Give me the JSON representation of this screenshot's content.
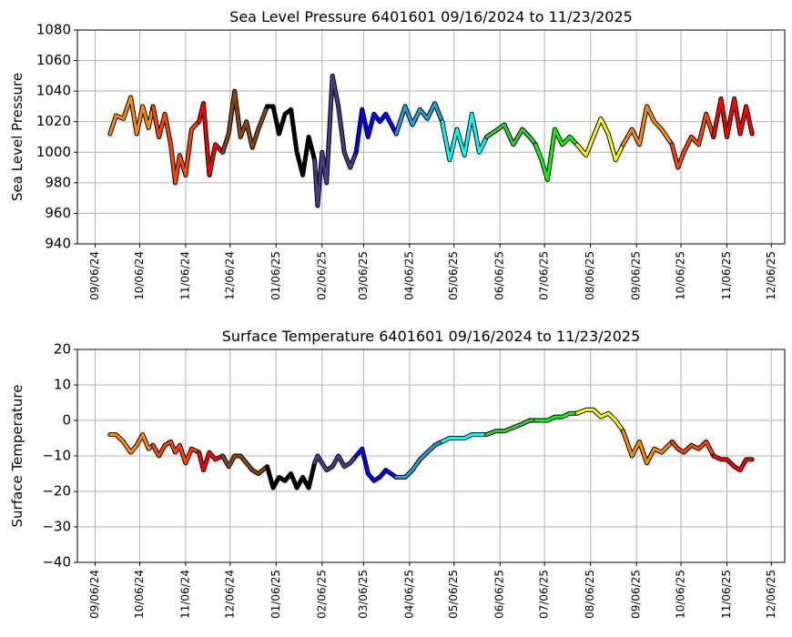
{
  "chart_data": [
    {
      "type": "line",
      "title": "Sea Level Pressure 6401601  09/16/2024 to 11/23/2025",
      "ylabel": "Sea Level Pressure",
      "grid": true,
      "xlim": [
        "2024-08-25",
        "2025-12-15"
      ],
      "ylim": [
        940,
        1080
      ],
      "yticks": [
        940,
        960,
        980,
        1000,
        1020,
        1040,
        1060,
        1080
      ],
      "xticks": [
        {
          "value": "2024-09-06",
          "label": "09/06/24"
        },
        {
          "value": "2024-10-06",
          "label": "10/06/24"
        },
        {
          "value": "2024-11-06",
          "label": "11/06/24"
        },
        {
          "value": "2024-12-06",
          "label": "12/06/24"
        },
        {
          "value": "2025-01-06",
          "label": "01/06/25"
        },
        {
          "value": "2025-02-06",
          "label": "02/06/25"
        },
        {
          "value": "2025-03-06",
          "label": "03/06/25"
        },
        {
          "value": "2025-04-06",
          "label": "04/06/25"
        },
        {
          "value": "2025-05-06",
          "label": "05/06/25"
        },
        {
          "value": "2025-06-06",
          "label": "06/06/25"
        },
        {
          "value": "2025-07-06",
          "label": "07/06/25"
        },
        {
          "value": "2025-08-06",
          "label": "08/06/25"
        },
        {
          "value": "2025-09-06",
          "label": "09/06/25"
        },
        {
          "value": "2025-10-06",
          "label": "10/06/25"
        },
        {
          "value": "2025-11-06",
          "label": "11/06/25"
        },
        {
          "value": "2025-12-06",
          "label": "12/06/25"
        }
      ],
      "series": [
        {
          "color": "#ff8c00",
          "x": [
            "2024-09-16",
            "2024-09-20",
            "2024-09-25",
            "2024-09-30",
            "2024-10-04",
            "2024-10-08",
            "2024-10-12",
            "2024-10-15"
          ],
          "values": [
            1012,
            1024,
            1022,
            1036,
            1012,
            1030,
            1016,
            1030
          ]
        },
        {
          "color": "#ff4500",
          "x": [
            "2024-10-15",
            "2024-10-19",
            "2024-10-23",
            "2024-10-27",
            "2024-10-30",
            "2024-11-02",
            "2024-11-06",
            "2024-11-10",
            "2024-11-15"
          ],
          "values": [
            1030,
            1010,
            1025,
            1005,
            980,
            998,
            985,
            1015,
            1020
          ]
        },
        {
          "color": "#ff0000",
          "x": [
            "2024-11-15",
            "2024-11-18",
            "2024-11-22",
            "2024-11-26",
            "2024-12-01"
          ],
          "values": [
            1020,
            1032,
            985,
            1005,
            1000
          ]
        },
        {
          "color": "#8b4513",
          "x": [
            "2024-12-01",
            "2024-12-05",
            "2024-12-09",
            "2024-12-13",
            "2024-12-17",
            "2024-12-21",
            "2024-12-25",
            "2024-12-31"
          ],
          "values": [
            1000,
            1012,
            1040,
            1010,
            1020,
            1003,
            1015,
            1030
          ]
        },
        {
          "color": "#000000",
          "x": [
            "2024-12-31",
            "2025-01-04",
            "2025-01-08",
            "2025-01-12",
            "2025-01-16",
            "2025-01-20",
            "2025-01-24",
            "2025-01-28",
            "2025-02-01"
          ],
          "values": [
            1030,
            1030,
            1012,
            1025,
            1028,
            1000,
            985,
            1010,
            995
          ]
        },
        {
          "color": "#483d8b",
          "x": [
            "2025-02-01",
            "2025-02-03",
            "2025-02-06",
            "2025-02-09",
            "2025-02-13",
            "2025-02-17",
            "2025-02-21",
            "2025-02-25",
            "2025-03-01"
          ],
          "values": [
            995,
            965,
            1000,
            980,
            1050,
            1030,
            1000,
            990,
            1000
          ]
        },
        {
          "color": "#0000ff",
          "x": [
            "2025-03-01",
            "2025-03-05",
            "2025-03-09",
            "2025-03-13",
            "2025-03-17",
            "2025-03-21",
            "2025-03-28"
          ],
          "values": [
            1000,
            1028,
            1010,
            1025,
            1020,
            1025,
            1012
          ]
        },
        {
          "color": "#1ea0e0",
          "x": [
            "2025-03-28",
            "2025-04-03",
            "2025-04-08",
            "2025-04-13",
            "2025-04-18",
            "2025-04-23",
            "2025-04-28"
          ],
          "values": [
            1012,
            1030,
            1018,
            1028,
            1022,
            1032,
            1020
          ]
        },
        {
          "color": "#00ffff",
          "x": [
            "2025-04-28",
            "2025-05-03",
            "2025-05-08",
            "2025-05-13",
            "2025-05-18",
            "2025-05-23",
            "2025-05-28"
          ],
          "values": [
            1020,
            995,
            1015,
            998,
            1025,
            1000,
            1010
          ]
        },
        {
          "color": "#32cd32",
          "x": [
            "2025-05-28",
            "2025-06-03",
            "2025-06-09",
            "2025-06-15",
            "2025-06-21",
            "2025-06-26",
            "2025-06-30"
          ],
          "values": [
            1010,
            1014,
            1018,
            1005,
            1015,
            1010,
            1005
          ]
        },
        {
          "color": "#00ff00",
          "x": [
            "2025-06-30",
            "2025-07-04",
            "2025-07-08",
            "2025-07-13",
            "2025-07-18",
            "2025-07-23",
            "2025-07-28"
          ],
          "values": [
            1005,
            995,
            982,
            1015,
            1005,
            1010,
            1005
          ]
        },
        {
          "color": "#ffff00",
          "x": [
            "2025-07-28",
            "2025-08-03",
            "2025-08-08",
            "2025-08-13",
            "2025-08-18",
            "2025-08-23",
            "2025-08-28"
          ],
          "values": [
            1005,
            998,
            1010,
            1022,
            1012,
            995,
            1005
          ]
        },
        {
          "color": "#ff8c00",
          "x": [
            "2025-08-28",
            "2025-09-03",
            "2025-09-08",
            "2025-09-13",
            "2025-09-18",
            "2025-09-23",
            "2025-09-30"
          ],
          "values": [
            1005,
            1015,
            1005,
            1030,
            1020,
            1015,
            1005
          ]
        },
        {
          "color": "#ff4500",
          "x": [
            "2025-09-30",
            "2025-10-04",
            "2025-10-08",
            "2025-10-13",
            "2025-10-18",
            "2025-10-23",
            "2025-10-28"
          ],
          "values": [
            1005,
            990,
            1000,
            1010,
            1005,
            1025,
            1010
          ]
        },
        {
          "color": "#ff0000",
          "x": [
            "2025-10-28",
            "2025-11-02",
            "2025-11-06",
            "2025-11-11",
            "2025-11-15",
            "2025-11-19",
            "2025-11-23"
          ],
          "values": [
            1010,
            1035,
            1010,
            1035,
            1012,
            1030,
            1012
          ]
        }
      ]
    },
    {
      "type": "line",
      "title": "Surface Temperature 6401601  09/16/2024 to 11/23/2025",
      "ylabel": "Surface Temperature",
      "grid": true,
      "xlim": [
        "2024-08-25",
        "2025-12-15"
      ],
      "ylim": [
        -40,
        20
      ],
      "yticks": [
        {
          "value": -40,
          "label": "−40"
        },
        {
          "value": -30,
          "label": "−30"
        },
        {
          "value": -20,
          "label": "−20"
        },
        {
          "value": -10,
          "label": "−10"
        },
        0,
        10,
        20
      ],
      "xticks": [
        {
          "value": "2024-09-06",
          "label": "09/06/24"
        },
        {
          "value": "2024-10-06",
          "label": "10/06/24"
        },
        {
          "value": "2024-11-06",
          "label": "11/06/24"
        },
        {
          "value": "2024-12-06",
          "label": "12/06/24"
        },
        {
          "value": "2025-01-06",
          "label": "01/06/25"
        },
        {
          "value": "2025-02-06",
          "label": "02/06/25"
        },
        {
          "value": "2025-03-06",
          "label": "03/06/25"
        },
        {
          "value": "2025-04-06",
          "label": "04/06/25"
        },
        {
          "value": "2025-05-06",
          "label": "05/06/25"
        },
        {
          "value": "2025-06-06",
          "label": "06/06/25"
        },
        {
          "value": "2025-07-06",
          "label": "07/06/25"
        },
        {
          "value": "2025-08-06",
          "label": "08/06/25"
        },
        {
          "value": "2025-09-06",
          "label": "09/06/25"
        },
        {
          "value": "2025-10-06",
          "label": "10/06/25"
        },
        {
          "value": "2025-11-06",
          "label": "11/06/25"
        },
        {
          "value": "2025-12-06",
          "label": "12/06/25"
        }
      ],
      "series": [
        {
          "color": "#ff8c00",
          "x": [
            "2024-09-16",
            "2024-09-20",
            "2024-09-25",
            "2024-09-30",
            "2024-10-04",
            "2024-10-08",
            "2024-10-12",
            "2024-10-15"
          ],
          "values": [
            -4,
            -4,
            -6,
            -9,
            -7,
            -4,
            -8,
            -7
          ]
        },
        {
          "color": "#ff4500",
          "x": [
            "2024-10-15",
            "2024-10-19",
            "2024-10-23",
            "2024-10-27",
            "2024-10-30",
            "2024-11-02",
            "2024-11-06",
            "2024-11-10",
            "2024-11-15"
          ],
          "values": [
            -7,
            -10,
            -7,
            -6,
            -9,
            -7,
            -12,
            -8,
            -9
          ]
        },
        {
          "color": "#ff0000",
          "x": [
            "2024-11-15",
            "2024-11-18",
            "2024-11-22",
            "2024-11-26",
            "2024-12-01"
          ],
          "values": [
            -9,
            -14,
            -9,
            -11,
            -10
          ]
        },
        {
          "color": "#8b4513",
          "x": [
            "2024-12-01",
            "2024-12-05",
            "2024-12-09",
            "2024-12-13",
            "2024-12-17",
            "2024-12-21",
            "2024-12-25",
            "2024-12-31"
          ],
          "values": [
            -10,
            -13,
            -10,
            -10,
            -12,
            -14,
            -15,
            -13
          ]
        },
        {
          "color": "#000000",
          "x": [
            "2024-12-31",
            "2025-01-04",
            "2025-01-08",
            "2025-01-12",
            "2025-01-16",
            "2025-01-20",
            "2025-01-24",
            "2025-01-28",
            "2025-02-01"
          ],
          "values": [
            -13,
            -19,
            -16,
            -17,
            -15,
            -19,
            -16,
            -19,
            -12
          ]
        },
        {
          "color": "#483d8b",
          "x": [
            "2025-02-01",
            "2025-02-03",
            "2025-02-06",
            "2025-02-09",
            "2025-02-13",
            "2025-02-17",
            "2025-02-21",
            "2025-02-25",
            "2025-03-01"
          ],
          "values": [
            -12,
            -10,
            -12,
            -14,
            -13,
            -10,
            -13,
            -12,
            -10
          ]
        },
        {
          "color": "#0000ff",
          "x": [
            "2025-03-01",
            "2025-03-05",
            "2025-03-09",
            "2025-03-13",
            "2025-03-17",
            "2025-03-21",
            "2025-03-28"
          ],
          "values": [
            -10,
            -8,
            -15,
            -17,
            -16,
            -14,
            -16
          ]
        },
        {
          "color": "#1ea0e0",
          "x": [
            "2025-03-28",
            "2025-04-03",
            "2025-04-08",
            "2025-04-13",
            "2025-04-18",
            "2025-04-23",
            "2025-04-28"
          ],
          "values": [
            -16,
            -16,
            -14,
            -11,
            -9,
            -7,
            -6
          ]
        },
        {
          "color": "#00ffff",
          "x": [
            "2025-04-28",
            "2025-05-03",
            "2025-05-08",
            "2025-05-13",
            "2025-05-18",
            "2025-05-23",
            "2025-05-28"
          ],
          "values": [
            -6,
            -5,
            -5,
            -5,
            -4,
            -4,
            -4
          ]
        },
        {
          "color": "#32cd32",
          "x": [
            "2025-05-28",
            "2025-06-03",
            "2025-06-09",
            "2025-06-15",
            "2025-06-21",
            "2025-06-26",
            "2025-06-30"
          ],
          "values": [
            -4,
            -3,
            -3,
            -2,
            -1,
            0,
            0
          ]
        },
        {
          "color": "#00ff00",
          "x": [
            "2025-06-30",
            "2025-07-04",
            "2025-07-08",
            "2025-07-13",
            "2025-07-18",
            "2025-07-23",
            "2025-07-28"
          ],
          "values": [
            0,
            0,
            0,
            1,
            1,
            2,
            2
          ]
        },
        {
          "color": "#ffff00",
          "x": [
            "2025-07-28",
            "2025-08-03",
            "2025-08-08",
            "2025-08-13",
            "2025-08-18",
            "2025-08-23",
            "2025-08-28"
          ],
          "values": [
            2,
            3,
            3,
            1,
            2,
            0,
            -3
          ]
        },
        {
          "color": "#ff8c00",
          "x": [
            "2025-08-28",
            "2025-09-03",
            "2025-09-08",
            "2025-09-13",
            "2025-09-18",
            "2025-09-23",
            "2025-09-30"
          ],
          "values": [
            -3,
            -10,
            -6,
            -12,
            -8,
            -9,
            -6
          ]
        },
        {
          "color": "#ff4500",
          "x": [
            "2025-09-30",
            "2025-10-04",
            "2025-10-08",
            "2025-10-13",
            "2025-10-18",
            "2025-10-23",
            "2025-10-28"
          ],
          "values": [
            -6,
            -8,
            -9,
            -7,
            -8,
            -6,
            -10
          ]
        },
        {
          "color": "#ff0000",
          "x": [
            "2025-10-28",
            "2025-11-02",
            "2025-11-06",
            "2025-11-11",
            "2025-11-15",
            "2025-11-19",
            "2025-11-23"
          ],
          "values": [
            -10,
            -11,
            -11,
            -13,
            -14,
            -11,
            -11
          ]
        }
      ]
    }
  ]
}
